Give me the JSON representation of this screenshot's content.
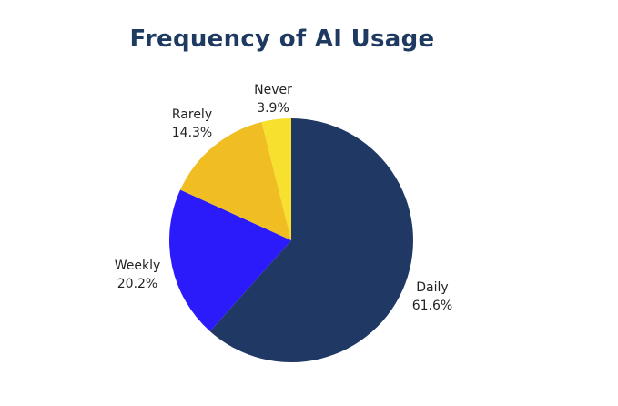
{
  "chart_data": {
    "type": "pie",
    "title": "Frequency of AI Usage",
    "slices": [
      {
        "label": "Daily",
        "percent_label": "61.6%",
        "value": 61.6,
        "color": "#1f3864"
      },
      {
        "label": "Weekly",
        "percent_label": "20.2%",
        "value": 20.2,
        "color": "#2b1bfb"
      },
      {
        "label": "Rarely",
        "percent_label": "14.3%",
        "value": 14.3,
        "color": "#f0be23"
      },
      {
        "label": "Never",
        "percent_label": "3.9%",
        "value": 3.9,
        "color": "#f7e02e"
      }
    ],
    "legend": "none",
    "start_angle": "12 o'clock",
    "direction": "clockwise"
  }
}
